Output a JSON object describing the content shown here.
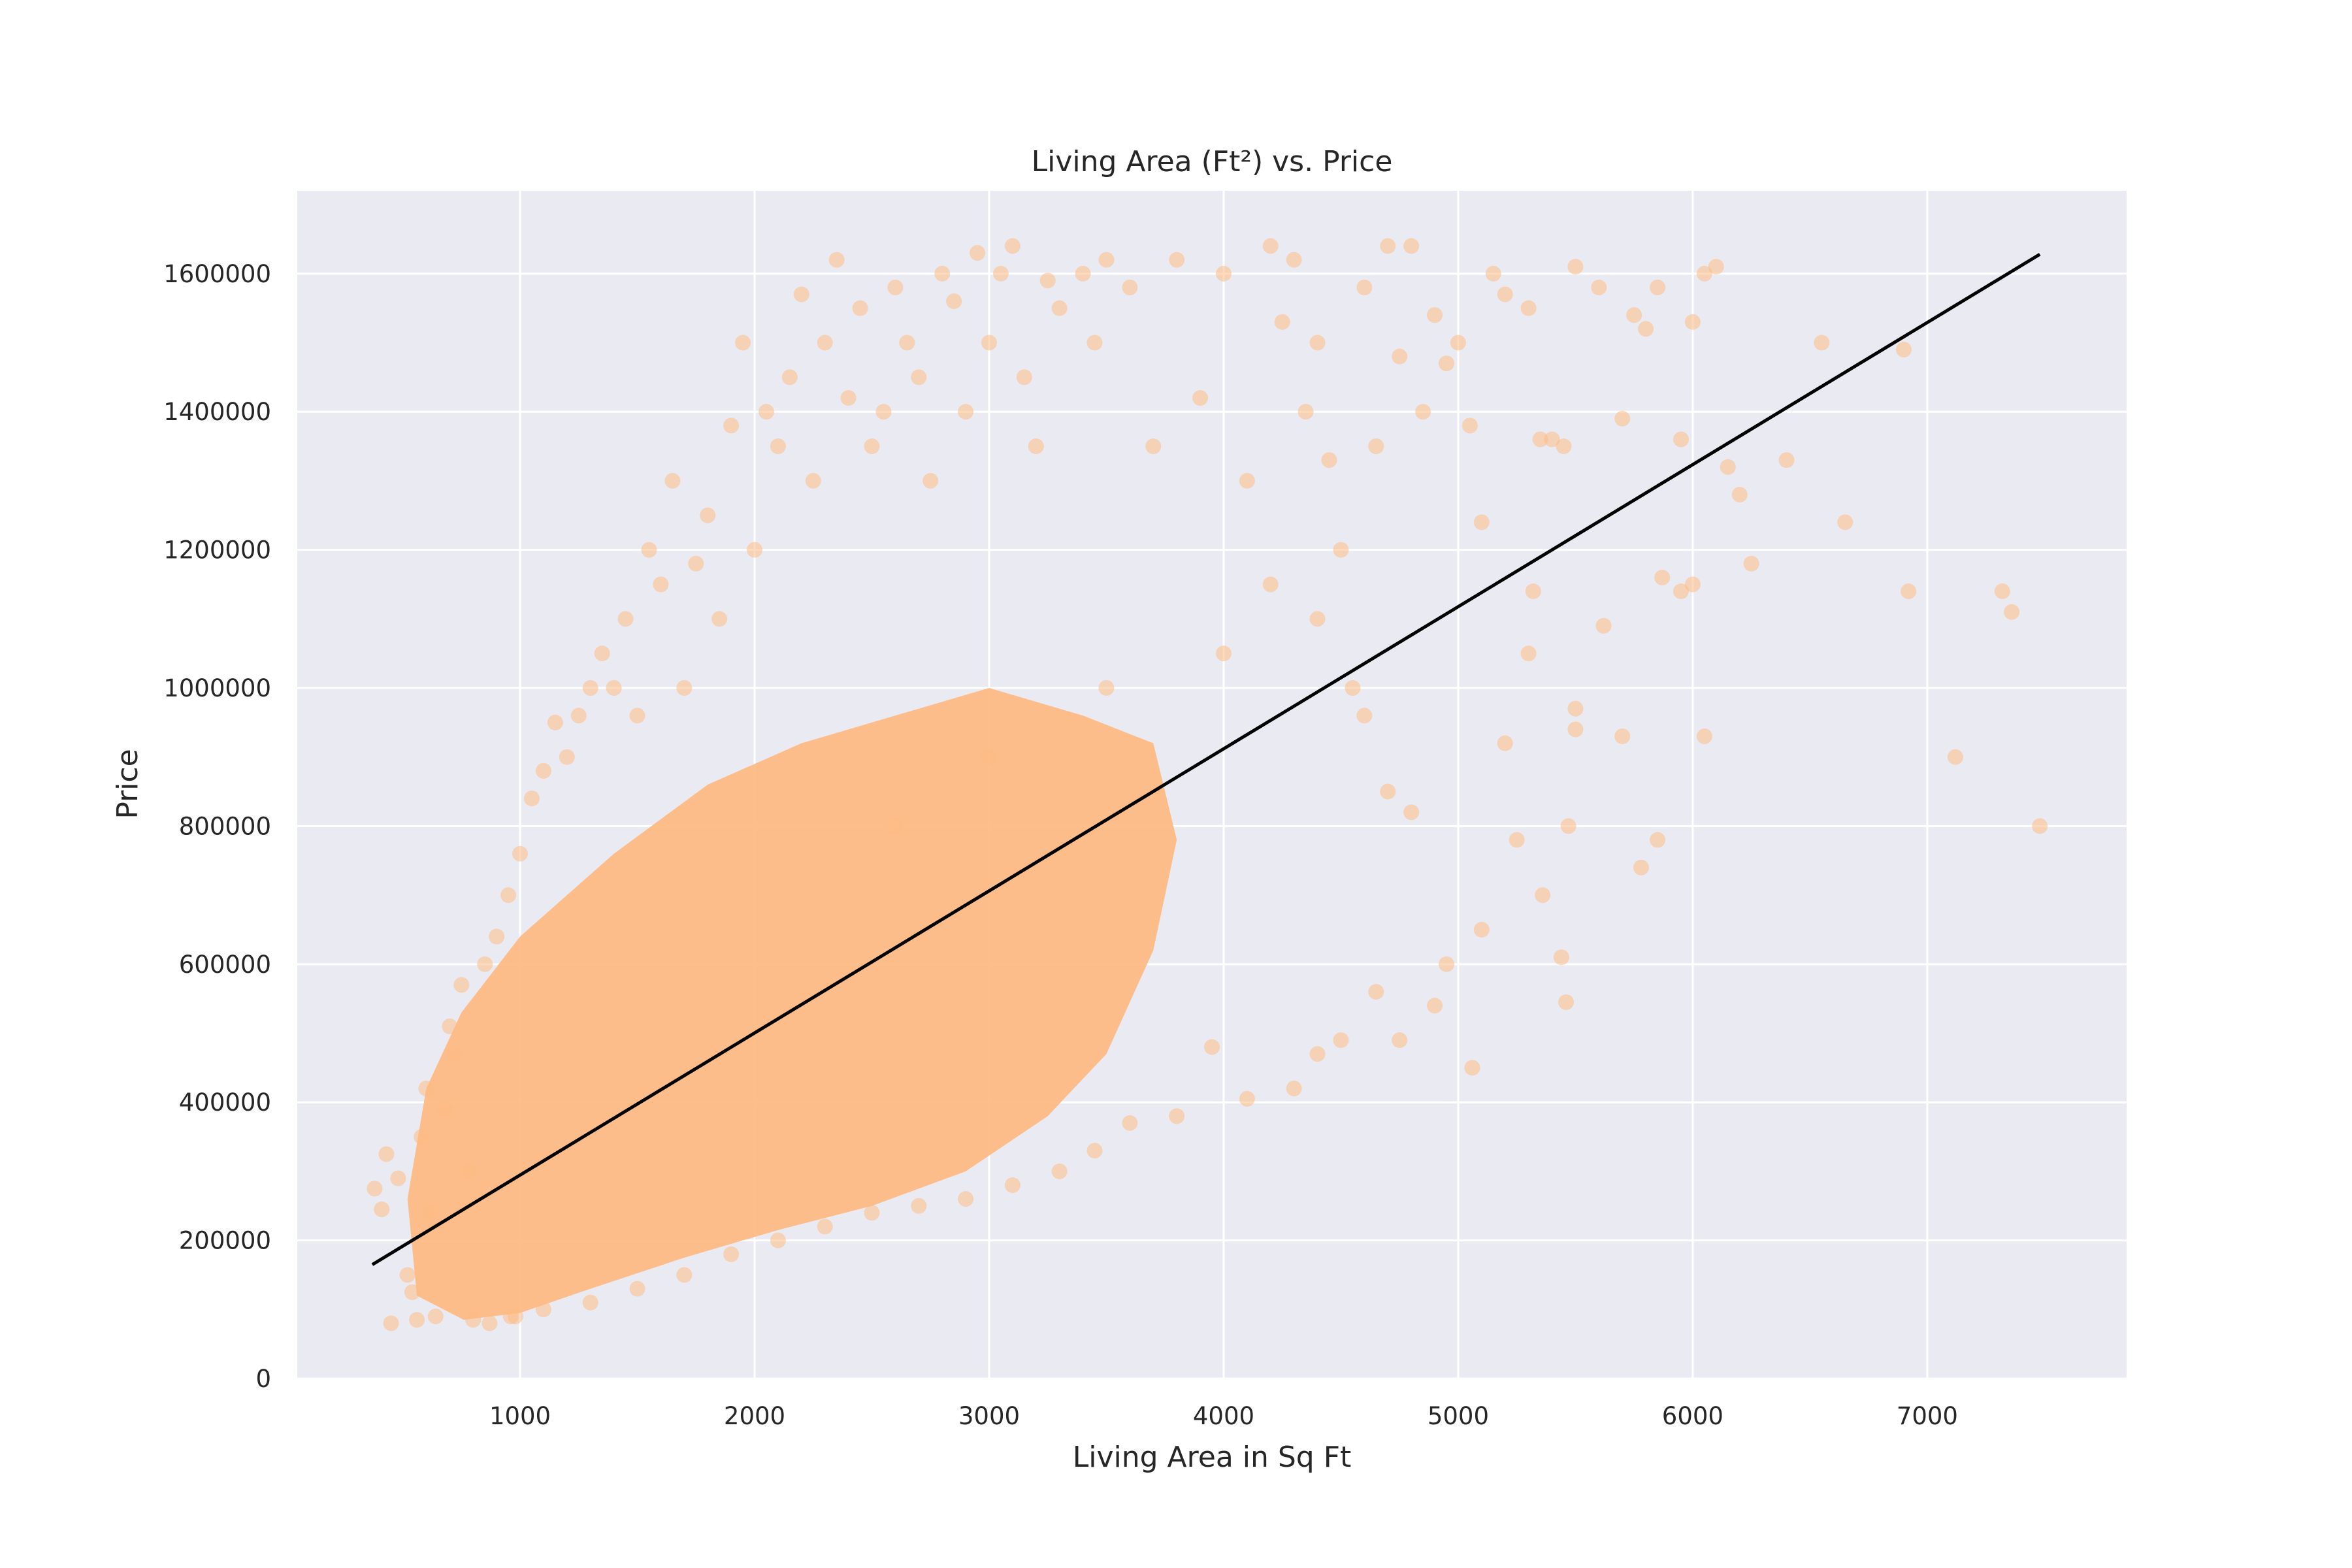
{
  "chart_data": {
    "type": "scatter",
    "title": "Living Area (Ft²) vs. Price",
    "xlabel": "Living Area in Sq Ft",
    "ylabel": "Price",
    "xlim": [
      50,
      7850
    ],
    "ylim": [
      0,
      1720000
    ],
    "xticks": [
      1000,
      2000,
      3000,
      4000,
      5000,
      6000,
      7000
    ],
    "xtick_labels": [
      "1000",
      "2000",
      "3000",
      "4000",
      "5000",
      "6000",
      "7000"
    ],
    "yticks": [
      0,
      200000,
      400000,
      600000,
      800000,
      1000000,
      1200000,
      1400000,
      1600000
    ],
    "ytick_labels": [
      "0",
      "200000",
      "400000",
      "600000",
      "800000",
      "1000000",
      "1200000",
      "1400000",
      "1600000"
    ],
    "grid": true,
    "colors": {
      "background": "#eaeaf2",
      "grid": "#ffffff",
      "points": "#fdbb84",
      "fit_line": "#000000"
    },
    "fit_line": {
      "x": [
        370,
        7480
      ],
      "y": [
        165000,
        1628000
      ]
    },
    "series": [
      {
        "points_sample": [
          [
            380,
            275000
          ],
          [
            410,
            245000
          ],
          [
            430,
            325000
          ],
          [
            450,
            80000
          ],
          [
            480,
            290000
          ],
          [
            520,
            150000
          ],
          [
            540,
            125000
          ],
          [
            560,
            85000
          ],
          [
            580,
            350000
          ],
          [
            600,
            420000
          ],
          [
            620,
            240000
          ],
          [
            640,
            90000
          ],
          [
            680,
            390000
          ],
          [
            700,
            510000
          ],
          [
            720,
            470000
          ],
          [
            750,
            570000
          ],
          [
            780,
            300000
          ],
          [
            800,
            85000
          ],
          [
            850,
            600000
          ],
          [
            870,
            80000
          ],
          [
            900,
            640000
          ],
          [
            950,
            700000
          ],
          [
            980,
            90000
          ],
          [
            1000,
            760000
          ],
          [
            1050,
            840000
          ],
          [
            1100,
            880000
          ],
          [
            1150,
            950000
          ],
          [
            1200,
            900000
          ],
          [
            1250,
            960000
          ],
          [
            1300,
            1000000
          ],
          [
            1350,
            1050000
          ],
          [
            1400,
            1000000
          ],
          [
            1450,
            1100000
          ],
          [
            1500,
            960000
          ],
          [
            1550,
            1200000
          ],
          [
            1600,
            1150000
          ],
          [
            1650,
            1300000
          ],
          [
            1700,
            1000000
          ],
          [
            1750,
            1180000
          ],
          [
            1800,
            1250000
          ],
          [
            1850,
            1100000
          ],
          [
            1900,
            1380000
          ],
          [
            1950,
            1500000
          ],
          [
            2000,
            1200000
          ],
          [
            2050,
            1400000
          ],
          [
            2100,
            1350000
          ],
          [
            2150,
            1450000
          ],
          [
            2200,
            1570000
          ],
          [
            2250,
            1300000
          ],
          [
            2300,
            1500000
          ],
          [
            2350,
            1620000
          ],
          [
            2400,
            1420000
          ],
          [
            2450,
            1550000
          ],
          [
            2500,
            1350000
          ],
          [
            2550,
            1400000
          ],
          [
            2600,
            1580000
          ],
          [
            2650,
            1500000
          ],
          [
            2700,
            1450000
          ],
          [
            2750,
            1300000
          ],
          [
            2800,
            1600000
          ],
          [
            2850,
            1560000
          ],
          [
            2900,
            1400000
          ],
          [
            2950,
            1630000
          ],
          [
            3000,
            1500000
          ],
          [
            3050,
            1600000
          ],
          [
            3100,
            1640000
          ],
          [
            3150,
            1450000
          ],
          [
            3200,
            1350000
          ],
          [
            3250,
            1590000
          ],
          [
            3300,
            1550000
          ],
          [
            3400,
            1600000
          ],
          [
            3450,
            1500000
          ],
          [
            3500,
            1620000
          ],
          [
            3600,
            1580000
          ],
          [
            3700,
            1350000
          ],
          [
            3800,
            1620000
          ],
          [
            3900,
            1420000
          ],
          [
            4000,
            1600000
          ],
          [
            4100,
            1300000
          ],
          [
            4200,
            1640000
          ],
          [
            4250,
            1530000
          ],
          [
            4300,
            1620000
          ],
          [
            4350,
            1400000
          ],
          [
            4400,
            1500000
          ],
          [
            4450,
            1330000
          ],
          [
            4500,
            1200000
          ],
          [
            4550,
            1000000
          ],
          [
            4600,
            1580000
          ],
          [
            4650,
            1350000
          ],
          [
            4700,
            1640000
          ],
          [
            4750,
            1480000
          ],
          [
            4800,
            1640000
          ],
          [
            4850,
            1400000
          ],
          [
            4900,
            1540000
          ],
          [
            4950,
            1470000
          ],
          [
            5000,
            1500000
          ],
          [
            5050,
            1380000
          ],
          [
            5100,
            1240000
          ],
          [
            5150,
            1600000
          ],
          [
            5200,
            1570000
          ],
          [
            5300,
            1550000
          ],
          [
            5350,
            1360000
          ],
          [
            5400,
            1360000
          ],
          [
            5450,
            1350000
          ],
          [
            5500,
            1610000
          ],
          [
            5600,
            1580000
          ],
          [
            5700,
            1390000
          ],
          [
            5750,
            1540000
          ],
          [
            5800,
            1520000
          ],
          [
            5850,
            1580000
          ],
          [
            5950,
            1360000
          ],
          [
            6000,
            1530000
          ],
          [
            6050,
            1600000
          ],
          [
            6100,
            1610000
          ],
          [
            6150,
            1320000
          ],
          [
            6200,
            1280000
          ],
          [
            6400,
            1330000
          ],
          [
            6550,
            1500000
          ],
          [
            6650,
            1240000
          ],
          [
            6900,
            1490000
          ],
          [
            6920,
            1140000
          ],
          [
            7120,
            900000
          ],
          [
            7320,
            1140000
          ],
          [
            7360,
            1110000
          ],
          [
            7480,
            800000
          ],
          [
            5500,
            970000
          ],
          [
            5470,
            800000
          ],
          [
            5460,
            545000
          ],
          [
            5440,
            610000
          ],
          [
            5360,
            700000
          ],
          [
            5250,
            780000
          ],
          [
            5100,
            650000
          ],
          [
            5060,
            450000
          ],
          [
            4950,
            600000
          ],
          [
            4900,
            540000
          ],
          [
            4750,
            490000
          ],
          [
            4650,
            560000
          ],
          [
            4500,
            490000
          ],
          [
            4400,
            470000
          ],
          [
            4300,
            420000
          ],
          [
            4100,
            405000
          ],
          [
            3950,
            480000
          ],
          [
            3800,
            380000
          ],
          [
            3600,
            370000
          ],
          [
            3450,
            330000
          ],
          [
            3300,
            300000
          ],
          [
            3100,
            280000
          ],
          [
            2900,
            260000
          ],
          [
            2700,
            250000
          ],
          [
            2500,
            240000
          ],
          [
            2300,
            220000
          ],
          [
            2100,
            200000
          ],
          [
            1900,
            180000
          ],
          [
            1700,
            150000
          ],
          [
            1500,
            130000
          ],
          [
            1300,
            110000
          ],
          [
            1100,
            100000
          ],
          [
            960,
            90000
          ],
          [
            2600,
            800000
          ],
          [
            3000,
            900000
          ],
          [
            3500,
            1000000
          ],
          [
            4000,
            1050000
          ],
          [
            4200,
            1150000
          ],
          [
            4400,
            1100000
          ],
          [
            4600,
            960000
          ],
          [
            4700,
            850000
          ],
          [
            4800,
            820000
          ],
          [
            5200,
            920000
          ],
          [
            5500,
            940000
          ],
          [
            5700,
            930000
          ],
          [
            5850,
            780000
          ],
          [
            5780,
            740000
          ],
          [
            6050,
            930000
          ],
          [
            6000,
            1150000
          ],
          [
            6250,
            1180000
          ],
          [
            5950,
            1140000
          ],
          [
            5870,
            1160000
          ],
          [
            5620,
            1090000
          ],
          [
            5320,
            1140000
          ],
          [
            5300,
            1050000
          ]
        ]
      }
    ]
  }
}
